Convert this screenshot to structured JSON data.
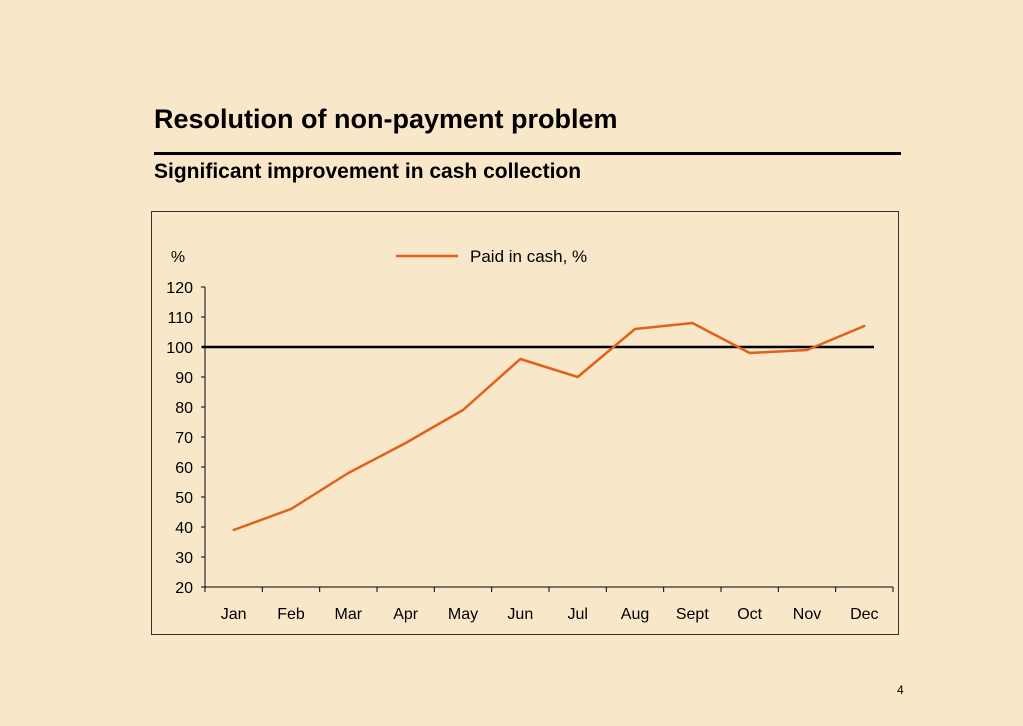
{
  "slide": {
    "title": "Resolution of non-payment problem",
    "subtitle": "Significant improvement in cash collection",
    "page_number": "4"
  },
  "colors": {
    "background": "#f9e7c9",
    "series_line": "#e0611a",
    "reference_line": "#000000"
  },
  "chart_data": {
    "type": "line",
    "title": "",
    "ylabel": "%",
    "xlabel": "",
    "categories": [
      "Jan",
      "Feb",
      "Mar",
      "Apr",
      "May",
      "Jun",
      "Jul",
      "Aug",
      "Sept",
      "Oct",
      "Nov",
      "Dec"
    ],
    "series": [
      {
        "name": "Paid in cash, %",
        "values": [
          39,
          46,
          58,
          68,
          79,
          96,
          90,
          106,
          108,
          98,
          99,
          107
        ]
      }
    ],
    "reference_line": 100,
    "ylim": [
      20,
      120
    ],
    "yticks": [
      20,
      30,
      40,
      50,
      60,
      70,
      80,
      90,
      100,
      110,
      120
    ],
    "grid": false,
    "legend_position": "top-center"
  }
}
